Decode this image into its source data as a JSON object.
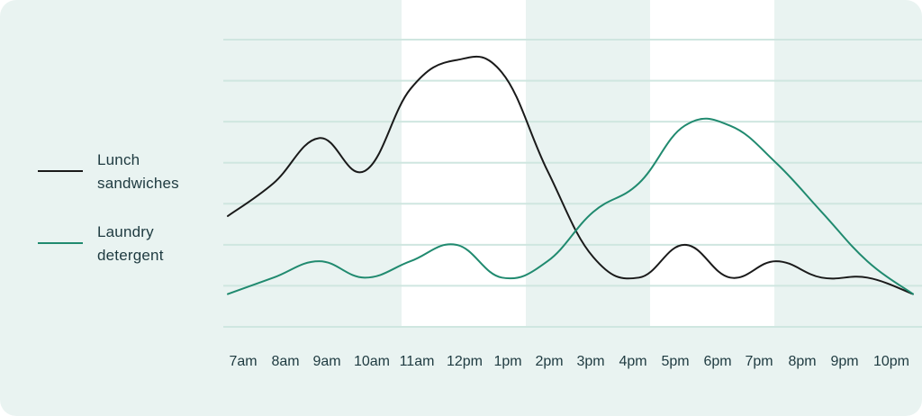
{
  "colors": {
    "card_background": "#e9f3f1",
    "band_white": "#ffffff",
    "gridline": "#cfe6e0",
    "text": "#1e3a40",
    "series_lunch": "#1a1a1a",
    "series_laundry": "#208a6f"
  },
  "legend": {
    "items": [
      {
        "label_line1": "Lunch",
        "label_line2": "sandwiches",
        "color": "#1a1a1a"
      },
      {
        "label_line1": "Laundry",
        "label_line2": "detergent",
        "color": "#208a6f"
      }
    ]
  },
  "chart_data": {
    "type": "line",
    "title": "",
    "xlabel": "",
    "ylabel": "",
    "categories": [
      "7am",
      "8am",
      "9am",
      "10am",
      "11am",
      "12pm",
      "1pm",
      "2pm",
      "3pm",
      "4pm",
      "5pm",
      "6pm",
      "7pm",
      "8pm",
      "9pm",
      "10pm"
    ],
    "series": [
      {
        "name": "Lunch sandwiches",
        "color": "#1a1a1a",
        "values": [
          2.7,
          3.5,
          4.6,
          3.8,
          5.8,
          6.5,
          6.2,
          3.8,
          1.7,
          1.2,
          2.0,
          1.2,
          1.6,
          1.2,
          1.2,
          0.8
        ]
      },
      {
        "name": "Laundry detergent",
        "color": "#208a6f",
        "values": [
          0.8,
          1.2,
          1.6,
          1.2,
          1.6,
          2.0,
          1.2,
          1.6,
          2.8,
          3.5,
          4.9,
          4.9,
          4.0,
          2.8,
          1.6,
          0.8
        ]
      }
    ],
    "ylim": [
      0,
      7
    ],
    "y_gridlines": [
      0,
      1,
      2,
      3,
      4,
      5,
      6,
      7
    ],
    "grid": true,
    "legend_position": "left",
    "highlight_bands": [
      {
        "from": "11am",
        "to": "1pm",
        "fill": "white"
      },
      {
        "from": "5pm",
        "to": "7pm",
        "fill": "white"
      }
    ]
  }
}
